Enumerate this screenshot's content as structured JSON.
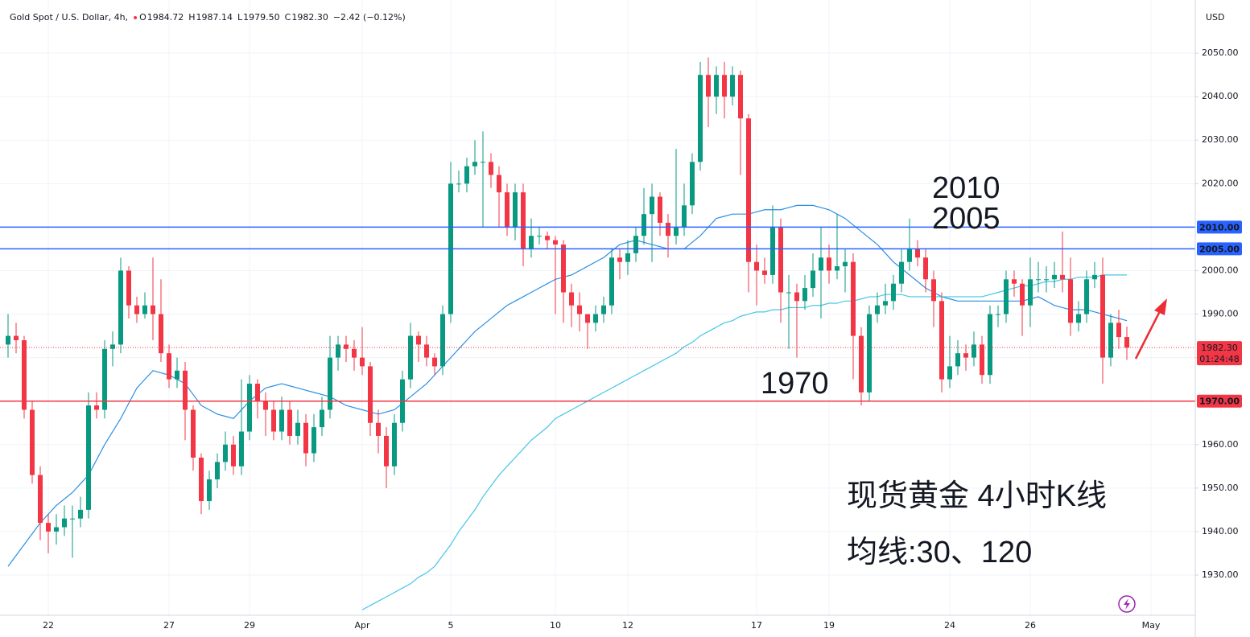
{
  "chart_data": {
    "type": "candlestick",
    "title": "Gold Spot / U.S. Dollar, 4h,",
    "header_ohlc": [
      {
        "key": "O",
        "value": "1984.72"
      },
      {
        "key": "H",
        "value": "1987.14"
      },
      {
        "key": "L",
        "value": "1979.50"
      },
      {
        "key": "C",
        "value": "1982.30"
      }
    ],
    "change": "−2.42 (−0.12%)",
    "currency": "USD",
    "up_color": "#089981",
    "down_color": "#f23645",
    "categories": [
      null,
      null,
      null,
      null,
      null,
      "22",
      null,
      null,
      null,
      null,
      null,
      null,
      null,
      null,
      null,
      null,
      null,
      null,
      null,
      null,
      "27",
      null,
      null,
      null,
      null,
      null,
      null,
      null,
      null,
      null,
      "29",
      null,
      null,
      null,
      null,
      null,
      null,
      null,
      null,
      null,
      null,
      null,
      null,
      null,
      "Apr",
      null,
      null,
      null,
      null,
      null,
      null,
      null,
      null,
      null,
      null,
      "5",
      null,
      null,
      null,
      null,
      null,
      null,
      null,
      null,
      null,
      null,
      null,
      null,
      "10",
      null,
      null,
      null,
      null,
      null,
      null,
      null,
      null,
      "12",
      null,
      null,
      null,
      null,
      null,
      null,
      null,
      null,
      null,
      null,
      null,
      null,
      null,
      null,
      null,
      "17",
      null,
      null,
      null,
      null,
      null,
      null,
      null,
      null,
      "19",
      null,
      null,
      null,
      null,
      null,
      null,
      null,
      null,
      null,
      null,
      null,
      null,
      null,
      null,
      "24",
      null,
      null,
      null,
      null,
      null,
      null,
      null,
      null,
      null,
      "26",
      null,
      null,
      null,
      null,
      null,
      null,
      null,
      null,
      null,
      null,
      null,
      null,
      null,
      null,
      "May"
    ],
    "open": [
      1983,
      1985,
      1984,
      1968,
      1953,
      1942,
      1940,
      1941,
      1943,
      1943,
      1945,
      1969,
      1968,
      1982,
      1983,
      2000,
      1992,
      1990,
      1992,
      1990,
      1981,
      1975,
      1977,
      1968,
      1957,
      1947,
      1952,
      1956,
      1960,
      1955,
      1963,
      1974,
      1970,
      1968,
      1963,
      1968,
      1962,
      1965,
      1958,
      1964,
      1968,
      1980,
      1983,
      1982,
      1980,
      1978,
      1965,
      1962,
      1955,
      1965,
      1975,
      1985,
      1983,
      1980,
      1978,
      1990,
      2020,
      2020,
      2024,
      2025,
      2025,
      2022,
      2018,
      2010,
      2018,
      2005,
      2008,
      2008,
      2007,
      2006,
      1995,
      1992,
      1990,
      1988,
      1990,
      1992,
      2003,
      2002,
      2004,
      2008,
      2013,
      2017,
      2011,
      2008,
      2010,
      2015,
      2025,
      2045,
      2040,
      2045,
      2040,
      2045,
      2035,
      2002,
      2000,
      1999,
      2010,
      1995,
      1995,
      1993,
      1996,
      2000,
      2003,
      2000,
      2001,
      2002,
      1985,
      1972,
      1990,
      1992,
      1993,
      1997,
      2002,
      2005,
      2003,
      1998,
      1993,
      1975,
      1978,
      1981,
      1980,
      1983,
      1976,
      1990,
      1990,
      1998,
      1997,
      1992,
      1998,
      1998,
      1998,
      1999,
      1998,
      1988,
      1990,
      1998,
      1999,
      1980,
      1988,
      1984.72,
      null,
      null,
      null
    ],
    "high": [
      1990,
      1988,
      1985,
      1970,
      1955,
      1944,
      1944,
      1946,
      1946,
      1948,
      1972,
      1972,
      1984,
      1986,
      2003,
      2001,
      1994,
      1995,
      2003,
      1998,
      1983,
      1980,
      1979,
      1969,
      1958,
      1954,
      1958,
      1963,
      1962,
      1975,
      1976,
      1975,
      1972,
      1970,
      1971,
      1970,
      1968,
      1967,
      1967,
      1971,
      1985,
      1985,
      1985,
      1984,
      1987,
      1979,
      1968,
      1964,
      1967,
      1977,
      1988,
      1986,
      1985,
      1981,
      1992,
      2025,
      2023,
      2026,
      2030,
      2032,
      2027,
      2024,
      2020,
      2020,
      2020,
      2012,
      2010,
      2009,
      2008,
      2007,
      1997,
      1995,
      1990,
      1992,
      1994,
      2005,
      2005,
      2007,
      2010,
      2019,
      2020,
      2018,
      2013,
      2028,
      2020,
      2027,
      2048,
      2049,
      2047,
      2048,
      2047,
      2046,
      2036,
      2006,
      2003,
      2015,
      2012,
      1999,
      1997,
      1999,
      2004,
      2010,
      2006,
      2013,
      2005,
      2004,
      1987,
      1992,
      1995,
      1997,
      1999,
      2005,
      2012,
      2007,
      2005,
      2000,
      1995,
      1985,
      1984,
      1983,
      1986,
      1985,
      1992,
      1992,
      2000,
      2000,
      1998,
      2003,
      2002,
      2001,
      2002,
      2009,
      2003,
      1993,
      2000,
      2002,
      2003,
      1990,
      1991,
      1987.14,
      null,
      null,
      null
    ],
    "low": [
      1980,
      1981,
      1966,
      1951,
      1938,
      1935,
      1937,
      1939,
      1934,
      1941,
      1943,
      1966,
      1966,
      1978,
      1981,
      1989,
      1988,
      1989,
      1984,
      1979,
      1973,
      1973,
      1961,
      1954,
      1944,
      1945,
      1950,
      1954,
      1953,
      1953,
      1961,
      1966,
      1962,
      1961,
      1961,
      1960,
      1960,
      1955,
      1956,
      1962,
      1966,
      1977,
      1979,
      1977,
      1976,
      1962,
      1958,
      1950,
      1953,
      1963,
      1973,
      1979,
      1978,
      1976,
      1976,
      1988,
      2018,
      2018,
      2022,
      2010,
      2019,
      2010,
      2008,
      2007,
      2001,
      2003,
      2006,
      2005,
      1990,
      1988,
      1987,
      1986,
      1982,
      1986,
      1988,
      1990,
      1998,
      1999,
      2002,
      2006,
      2002,
      2008,
      2003,
      2006,
      2008,
      2013,
      2023,
      2033,
      2036,
      2035,
      2038,
      2022,
      1995,
      1992,
      1997,
      1997,
      1988,
      1982,
      1980,
      1991,
      1994,
      1989,
      1997,
      1998,
      1995,
      1975,
      1969,
      1970,
      1988,
      1990,
      1991,
      1995,
      2000,
      2001,
      1995,
      1987,
      1972,
      1973,
      1976,
      1977,
      1978,
      1974,
      1974,
      1987,
      1988,
      1994,
      1985,
      1987,
      1995,
      1995,
      1996,
      1995,
      1985,
      1986,
      1988,
      1996,
      1974,
      1978,
      1982,
      1979.5,
      null,
      null,
      null
    ],
    "close": [
      1985,
      1984,
      1968,
      1953,
      1942,
      1940,
      1941,
      1943,
      1943,
      1945,
      1969,
      1968,
      1982,
      1983,
      2000,
      1992,
      1990,
      1992,
      1990,
      1981,
      1975,
      1977,
      1968,
      1957,
      1947,
      1952,
      1956,
      1960,
      1955,
      1963,
      1974,
      1970,
      1968,
      1963,
      1968,
      1962,
      1965,
      1958,
      1964,
      1968,
      1980,
      1983,
      1982,
      1980,
      1978,
      1965,
      1962,
      1955,
      1965,
      1975,
      1985,
      1983,
      1980,
      1978,
      1990,
      2020,
      2020,
      2024,
      2025,
      2025,
      2022,
      2018,
      2010,
      2018,
      2005,
      2008,
      2008,
      2007,
      2006,
      1995,
      1992,
      1990,
      1988,
      1990,
      1992,
      2003,
      2002,
      2004,
      2008,
      2013,
      2017,
      2011,
      2008,
      2010,
      2015,
      2025,
      2045,
      2040,
      2045,
      2040,
      2045,
      2035,
      2002,
      2000,
      1999,
      2010,
      1995,
      1995,
      1993,
      1996,
      2000,
      2003,
      2000,
      2001,
      2002,
      1985,
      1972,
      1990,
      1992,
      1993,
      1997,
      2002,
      2005,
      2003,
      1998,
      1993,
      1975,
      1978,
      1981,
      1980,
      1983,
      1976,
      1990,
      1990,
      1998,
      1997,
      1992,
      1998,
      1998,
      1998,
      1999,
      1998,
      1988,
      1990,
      1998,
      1999,
      1980,
      1988,
      1984.72,
      1982.3,
      null,
      null,
      null
    ],
    "moving_averages": [
      {
        "color": "#2a8fe6",
        "values": [
          1932,
          1934.5,
          1937,
          1939.5,
          1942,
          1944,
          1946,
          1947.5,
          1949,
          1951,
          1953,
          1956.5,
          1960,
          1963,
          1966,
          1969.5,
          1973,
          1975,
          1977,
          1976.5,
          1976,
          1975,
          1974,
          1971.5,
          1969,
          1968,
          1967,
          1966.5,
          1966,
          1968,
          1970,
          1971.5,
          1973,
          1973.5,
          1974,
          1973.5,
          1973,
          1972.5,
          1972,
          1971.5,
          1971,
          1970,
          1969,
          1968.5,
          1968,
          1967.5,
          1967,
          1967.5,
          1968,
          1969.5,
          1971,
          1972.5,
          1974,
          1976,
          1978,
          1980,
          1982,
          1984,
          1986,
          1987.5,
          1989,
          1990.5,
          1992,
          1993,
          1994,
          1995,
          1996,
          1997,
          1998,
          1998.5,
          1999,
          2000,
          2001,
          2002,
          2003,
          2004.5,
          2006,
          2006.5,
          2007,
          2006.5,
          2006,
          2005.5,
          2005,
          2005,
          2005,
          2006.5,
          2008,
          2010,
          2012,
          2012.5,
          2013,
          2013,
          2013,
          2013.5,
          2014,
          2014,
          2014,
          2014.5,
          2015,
          2015,
          2015,
          2014.5,
          2014,
          2013,
          2012,
          2010.5,
          2009,
          2007.5,
          2006,
          2004,
          2002,
          2000.5,
          1999,
          1997.5,
          1996,
          1995,
          1994,
          1993.5,
          1993,
          1993,
          1993,
          1993,
          1993,
          1993,
          1993,
          1993,
          1993,
          1993.5,
          1994,
          1993,
          1992,
          1991.5,
          1991,
          1991,
          1991,
          1990.5,
          1990,
          1989.5,
          1989,
          1988.5,
          null,
          null,
          null
        ]
      },
      {
        "color": "#45c6e6",
        "values": [
          null,
          null,
          null,
          null,
          null,
          null,
          null,
          null,
          null,
          null,
          null,
          null,
          null,
          null,
          null,
          null,
          null,
          null,
          null,
          null,
          null,
          null,
          null,
          null,
          null,
          null,
          null,
          null,
          null,
          null,
          null,
          null,
          null,
          null,
          null,
          null,
          null,
          null,
          null,
          null,
          null,
          null,
          null,
          null,
          1922,
          1923,
          1924,
          1925,
          1926,
          1927,
          1928,
          1929.5,
          1930.5,
          1932,
          1934.5,
          1937,
          1940,
          1942.5,
          1945,
          1948,
          1950.5,
          1953,
          1955,
          1957,
          1959,
          1961,
          1962.5,
          1964,
          1966,
          1967,
          1968,
          1969,
          1970,
          1971,
          1972,
          1973,
          1974,
          1975,
          1976,
          1977,
          1978,
          1979,
          1980,
          1981,
          1982.5,
          1983.5,
          1985,
          1986,
          1987,
          1988,
          1988.5,
          1989.5,
          1990,
          1990.5,
          1990.5,
          1991,
          1991,
          1991.5,
          1991.5,
          1991.5,
          1992,
          1992,
          1992.5,
          1992.5,
          1993,
          1993,
          1993.5,
          1994,
          1994,
          1994.5,
          1994.5,
          1994.5,
          1994,
          1994,
          1994,
          1994,
          1994,
          1994,
          1994,
          1994,
          1994,
          1994,
          1994.5,
          1995,
          1995.5,
          1996,
          1996.5,
          1996.5,
          1997,
          1997.5,
          1997.5,
          1998,
          1998,
          1998.5,
          1998.5,
          1998.5,
          1999,
          1999,
          1999,
          1999,
          null,
          null,
          null
        ]
      }
    ],
    "ylim": [
      1920.75,
      2061.3
    ],
    "yticks": [
      {
        "value": 1930,
        "label": "1930.00"
      },
      {
        "value": 1940,
        "label": "1940.00"
      },
      {
        "value": 1950,
        "label": "1950.00"
      },
      {
        "value": 1960,
        "label": "1960.00"
      },
      {
        "value": 1970,
        "label": "1970.00"
      },
      {
        "value": 1980,
        "label": "1980.00"
      },
      {
        "value": 1990,
        "label": "1990.00"
      },
      {
        "value": 2000,
        "label": "2000.00"
      },
      {
        "value": 2010,
        "label": "2010.00"
      },
      {
        "value": 2020,
        "label": "2020.00"
      },
      {
        "value": 2030,
        "label": "2030.00"
      },
      {
        "value": 2040,
        "label": "2040.00"
      },
      {
        "value": 2050,
        "label": "2050.00"
      }
    ],
    "grid": true,
    "hlines": [
      {
        "value": 2010,
        "label": "2010.00",
        "color": "#2962ff"
      },
      {
        "value": 2005,
        "label": "2005.00",
        "color": "#2962ff"
      },
      {
        "value": 1970,
        "label": "1970.00",
        "color": "#f23645"
      }
    ],
    "last_price": {
      "value": 1982.3,
      "label": "1982.30",
      "countdown": "01:24:48",
      "color": "#f23645"
    },
    "annotations": [
      {
        "text": "2010",
        "color": "#e8353d"
      },
      {
        "text": "2005",
        "color": "#e8353d"
      },
      {
        "text": "1970",
        "color": "#e8353d"
      },
      {
        "text": "现货黄金 4小时K线",
        "color": "#e8353d"
      },
      {
        "text": "均线:30、120",
        "color": "#e8353d"
      }
    ]
  }
}
